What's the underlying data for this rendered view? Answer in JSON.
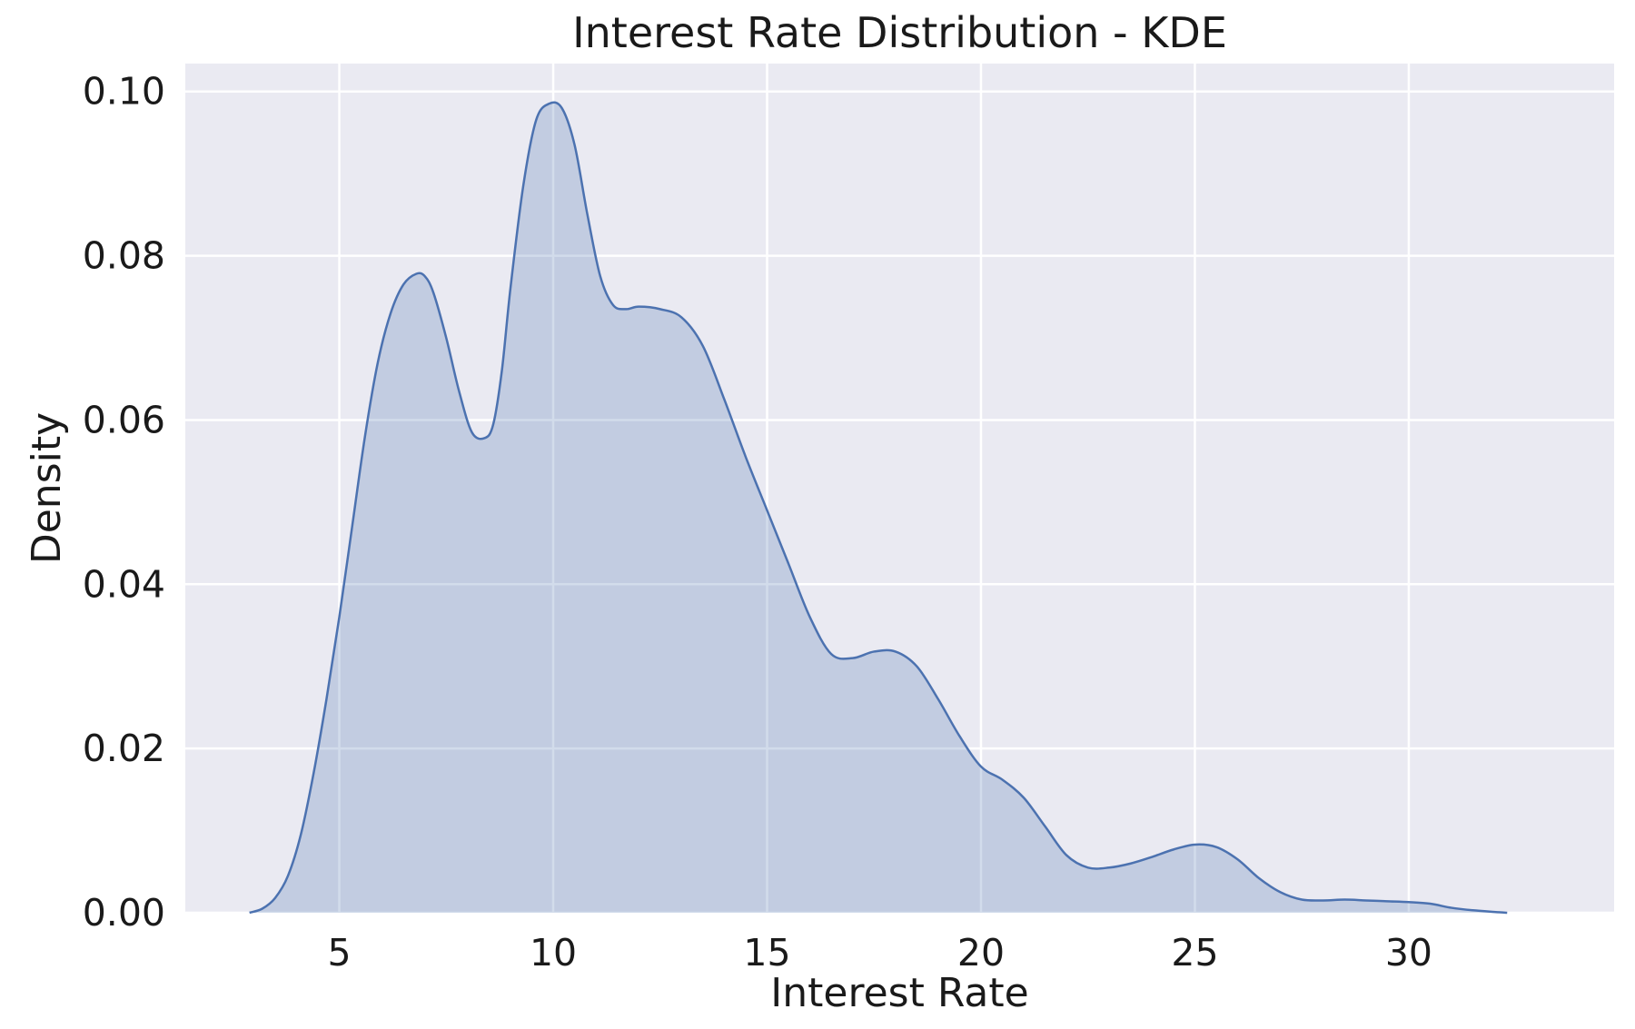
{
  "chart_data": {
    "type": "area",
    "title": "Interest Rate Distribution - KDE",
    "xlabel": "Interest Rate",
    "ylabel": "Density",
    "xlim": [
      1.4,
      34.8
    ],
    "ylim": [
      0,
      0.1034
    ],
    "x_ticks": [
      5,
      10,
      15,
      20,
      25,
      30
    ],
    "x_tick_labels": [
      "5",
      "10",
      "15",
      "20",
      "25",
      "30"
    ],
    "y_ticks": [
      0,
      0.02,
      0.04,
      0.06,
      0.08,
      0.1
    ],
    "y_tick_labels": [
      "0.00",
      "0.02",
      "0.04",
      "0.06",
      "0.08",
      "0.10"
    ],
    "grid": true,
    "legend": "none",
    "colors": {
      "plot_background": "#eaeaf2",
      "grid": "#ffffff",
      "line": "#4c72b0",
      "fill": "#4c72b0",
      "fill_opacity": 0.25
    },
    "series": [
      {
        "x": [
          2.9,
          3.2,
          3.5,
          3.8,
          4.1,
          4.4,
          4.7,
          5.0,
          5.3,
          5.6,
          5.9,
          6.2,
          6.5,
          6.8,
          7.0,
          7.2,
          7.5,
          7.8,
          8.1,
          8.4,
          8.6,
          8.8,
          9.0,
          9.3,
          9.6,
          9.9,
          10.2,
          10.5,
          10.8,
          11.1,
          11.4,
          11.7,
          12.0,
          12.5,
          13.0,
          13.5,
          14.0,
          14.5,
          15.0,
          15.5,
          16.0,
          16.5,
          17.0,
          17.5,
          18.0,
          18.5,
          19.0,
          19.5,
          20.0,
          20.5,
          21.0,
          21.5,
          22.0,
          22.5,
          23.0,
          23.5,
          24.0,
          24.5,
          25.0,
          25.5,
          26.0,
          26.5,
          27.0,
          27.5,
          28.0,
          28.5,
          29.0,
          29.5,
          30.0,
          30.5,
          31.0,
          31.5,
          32.0,
          32.3
        ],
        "y": [
          0.0,
          0.0005,
          0.0018,
          0.0045,
          0.0095,
          0.017,
          0.026,
          0.036,
          0.047,
          0.058,
          0.067,
          0.073,
          0.0765,
          0.0778,
          0.0775,
          0.0755,
          0.07,
          0.0635,
          0.0585,
          0.0578,
          0.0595,
          0.066,
          0.076,
          0.0885,
          0.0965,
          0.0985,
          0.098,
          0.0935,
          0.085,
          0.0775,
          0.074,
          0.0735,
          0.0738,
          0.0735,
          0.0725,
          0.069,
          0.0625,
          0.0555,
          0.049,
          0.0425,
          0.036,
          0.0315,
          0.031,
          0.0318,
          0.0318,
          0.03,
          0.026,
          0.0215,
          0.0178,
          0.0162,
          0.014,
          0.0105,
          0.007,
          0.0055,
          0.0055,
          0.006,
          0.0068,
          0.0077,
          0.0083,
          0.008,
          0.0065,
          0.0042,
          0.0025,
          0.0016,
          0.0015,
          0.0016,
          0.0015,
          0.0014,
          0.0013,
          0.0011,
          0.0006,
          0.0003,
          0.0001,
          0.0
        ]
      }
    ]
  }
}
